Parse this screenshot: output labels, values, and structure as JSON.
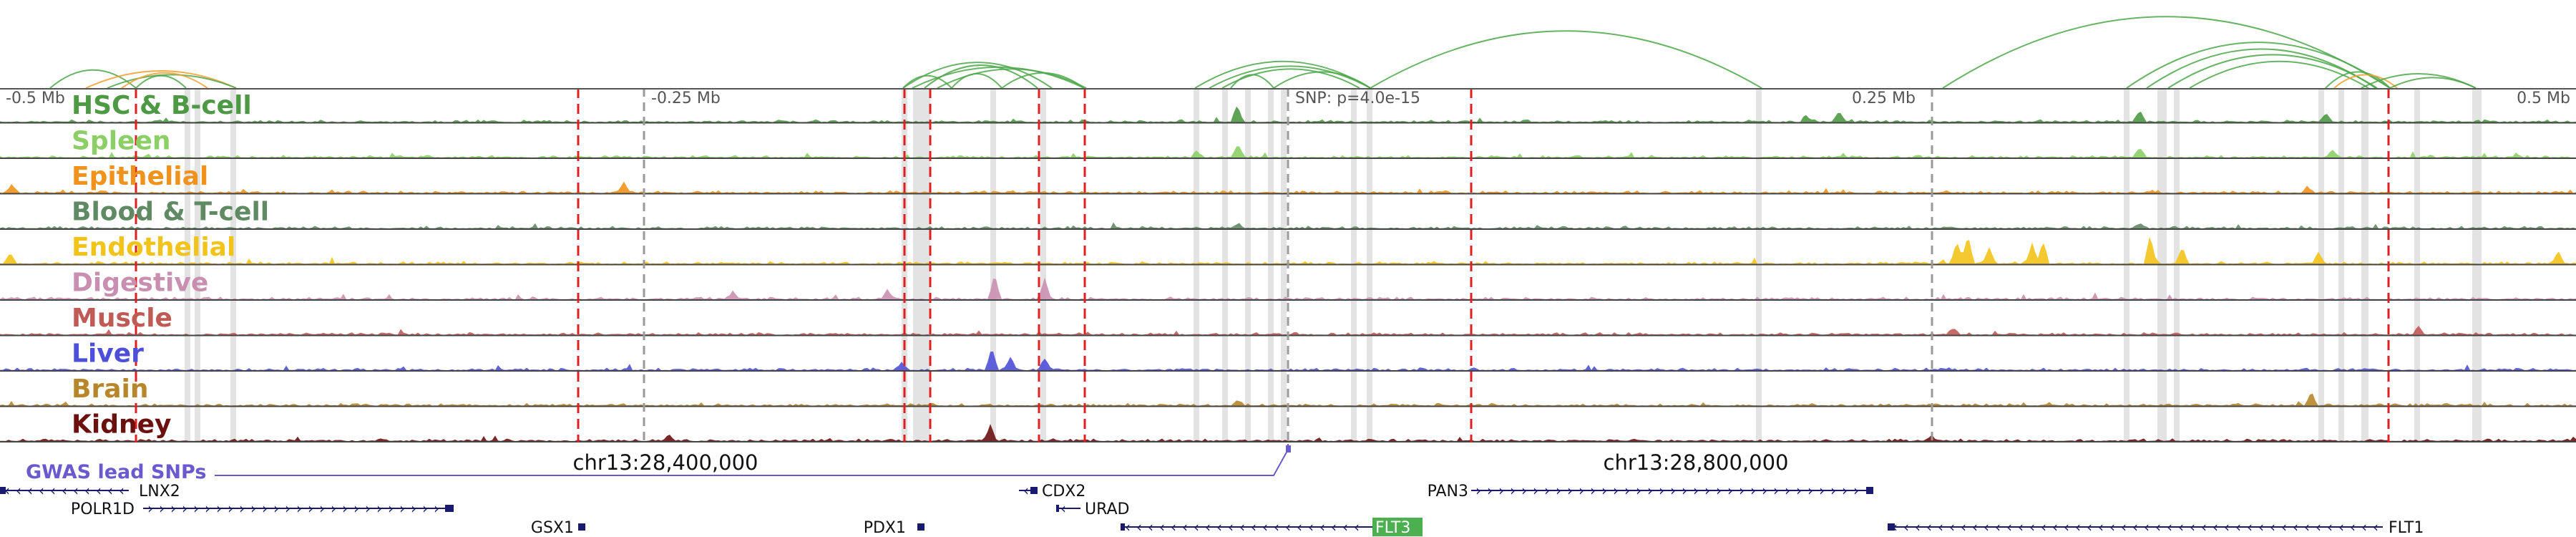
{
  "ruler": {
    "ticks": [
      {
        "label": "-0.5 Mb",
        "kind": "edge-left"
      },
      {
        "label": "-0.25 Mb",
        "kind": "mid"
      },
      {
        "label": "SNP: p=4.0e-15",
        "kind": "snp"
      },
      {
        "label": "0.25 Mb",
        "kind": "mid"
      },
      {
        "label": "0.5 Mb",
        "kind": "edge-right"
      }
    ]
  },
  "tracks": [
    {
      "label": "HSC & B-cell",
      "color": "#4e9a44"
    },
    {
      "label": "Spleen",
      "color": "#8ccf66"
    },
    {
      "label": "Epithelial",
      "color": "#f0921b"
    },
    {
      "label": "Blood & T-cell",
      "color": "#5f8a63"
    },
    {
      "label": "Endothelial",
      "color": "#f2c318"
    },
    {
      "label": "Digestive",
      "color": "#c98fb0"
    },
    {
      "label": "Muscle",
      "color": "#bf5a55"
    },
    {
      "label": "Liver",
      "color": "#4d4fd8"
    },
    {
      "label": "Brain",
      "color": "#b8862a"
    },
    {
      "label": "Kidney",
      "color": "#6b0f0f"
    }
  ],
  "coordinates": [
    {
      "label": "chr13:28,400,000"
    },
    {
      "label": "chr13:28,800,000"
    }
  ],
  "gwas": {
    "label": "GWAS lead SNPs",
    "color": "#6a5acd"
  },
  "genes": [
    {
      "name": "LNX2",
      "strand": "-"
    },
    {
      "name": "POLR1D",
      "strand": "+"
    },
    {
      "name": "GSX1",
      "strand": "+"
    },
    {
      "name": "PDX1",
      "strand": "+"
    },
    {
      "name": "CDX2",
      "strand": "-"
    },
    {
      "name": "URAD",
      "strand": "-"
    },
    {
      "name": "FLT3",
      "strand": "-",
      "highlight": true
    },
    {
      "name": "PAN3",
      "strand": "+"
    },
    {
      "name": "FLT1",
      "strand": "-"
    }
  ],
  "colors": {
    "loop": "#4ea74a",
    "loop_alt": "#f0a030",
    "red_marker": "#e02020",
    "grey_marker": "#9a9a9a",
    "gene": "#1a1a6e",
    "highlight_bg": "#4caf50"
  }
}
